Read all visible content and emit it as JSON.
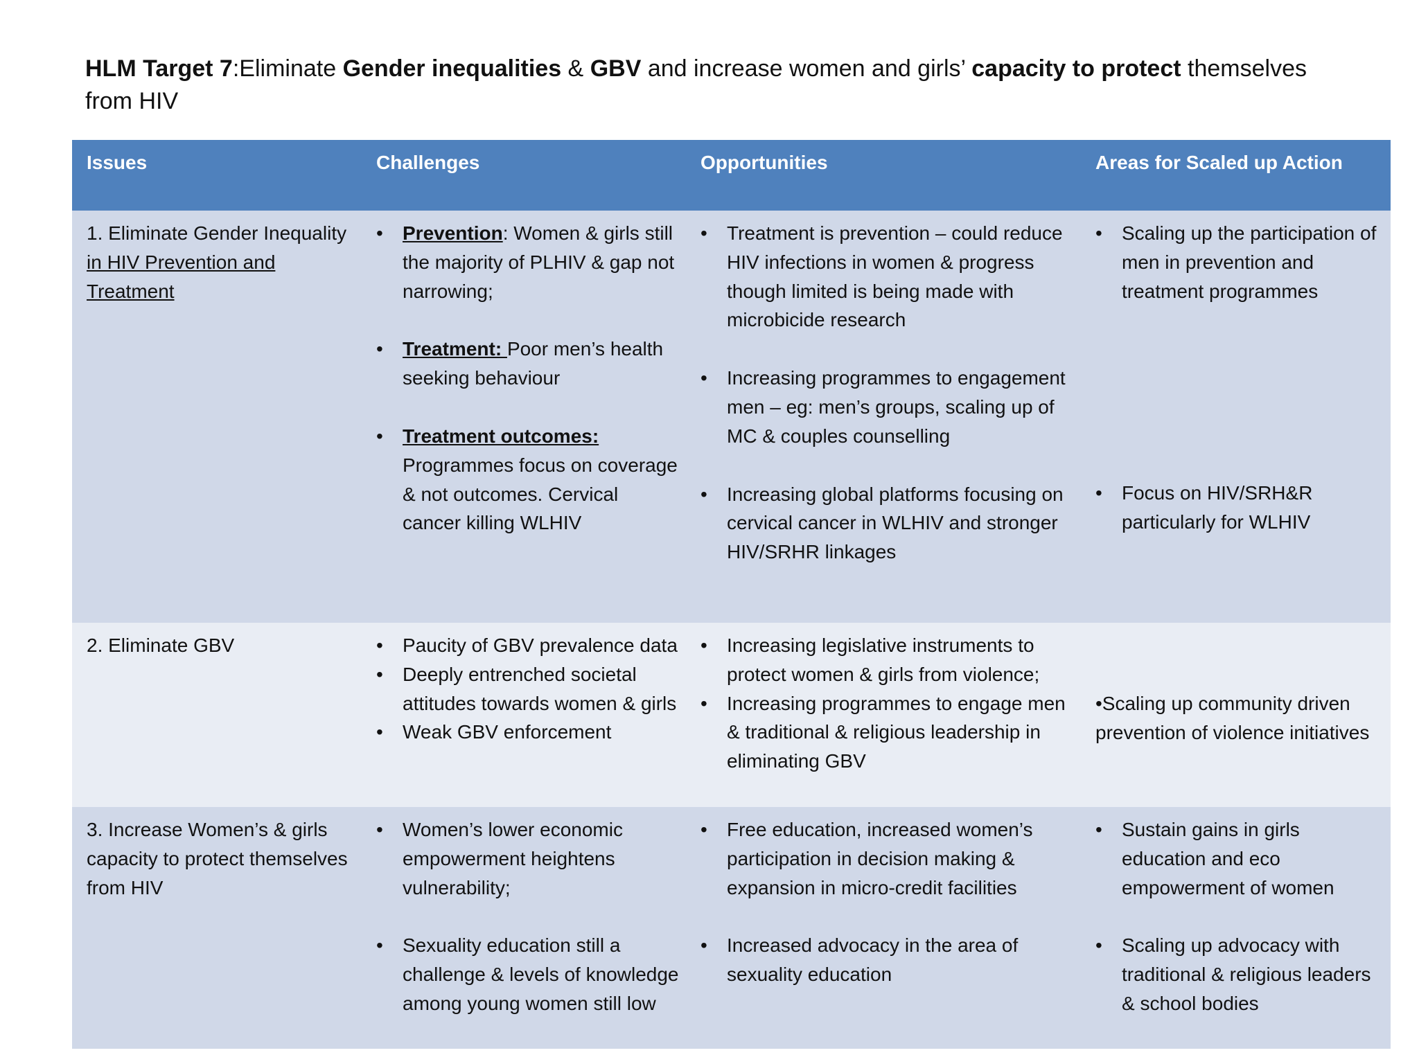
{
  "header": {
    "title": [
      {
        "text": "HLM Target 7",
        "bold": true
      },
      {
        "text": ":Eliminate "
      },
      {
        "text": "Gender inequalities",
        "bold": true
      },
      {
        "text": " & "
      },
      {
        "text": "GBV",
        "bold": true
      },
      {
        "text": " and increase women and girls’ "
      },
      {
        "text": "capacity to protect",
        "bold": true
      },
      {
        "text": " themselves from HIV"
      }
    ]
  },
  "table": {
    "columns": [
      "Issues",
      "Challenges",
      "Opportunities",
      "Areas for Scaled up Action"
    ],
    "rows": [
      {
        "issues": [
          [
            {
              "text": "1.  Eliminate Gender Inequality "
            },
            {
              "text": "in HIV Prevention and Treatment",
              "underline": true
            }
          ]
        ],
        "challenges": [
          [
            {
              "text": "Prevention",
              "bold": true,
              "underline": true
            },
            {
              "text": ":  Women & girls still the majority of PLHIV & gap not narrowing;"
            }
          ],
          [
            {
              "text": "Treatment: ",
              "bold": true,
              "underline": true
            },
            {
              "text": "Poor men’s health seeking behaviour"
            }
          ],
          [
            {
              "text": "Treatment outcomes: ",
              "bold": true,
              "underline": true
            },
            {
              "text": "Programmes focus on coverage & not outcomes. Cervical cancer killing WLHIV"
            }
          ]
        ],
        "opportunities": [
          [
            {
              "text": "Treatment is prevention – could reduce HIV infections in women & progress though limited is being made with microbicide research"
            }
          ],
          [
            {
              "text": "Increasing programmes to engagement men – eg: men’s groups, scaling up of MC & couples counselling"
            }
          ],
          [
            {
              "text": "Increasing global platforms focusing on cervical cancer in WLHIV and stronger HIV/SRHR linkages"
            }
          ]
        ],
        "actions": [
          [
            {
              "text": "Scaling up the participation of men in prevention and treatment programmes"
            }
          ],
          [
            {
              "text": "Focus on HIV/SRH&R particularly for WLHIV"
            }
          ]
        ]
      },
      {
        "issues": [
          [
            {
              "text": "2.  Eliminate GBV"
            }
          ]
        ],
        "challenges": [
          [
            {
              "text": "Paucity of GBV prevalence data"
            }
          ],
          [
            {
              "text": "Deeply entrenched societal attitudes towards women & girls"
            }
          ],
          [
            {
              "text": "Weak GBV enforcement"
            }
          ]
        ],
        "opportunities": [
          [
            {
              "text": "Increasing legislative instruments to protect women & girls from violence;"
            }
          ],
          [
            {
              "text": "Increasing programmes to engage men & traditional  & religious leadership in eliminating GBV"
            }
          ]
        ],
        "actions": [
          [
            {
              "text": "•Scaling up community driven prevention of violence initiatives"
            }
          ]
        ]
      },
      {
        "issues": [
          [
            {
              "text": "3.  Increase Women’s & girls capacity to protect themselves from HIV"
            }
          ]
        ],
        "challenges": [
          [
            {
              "text": "Women’s lower economic empowerment heightens vulnerability;"
            }
          ],
          [
            {
              "text": "Sexuality education still a challenge & levels of knowledge among young women still low"
            }
          ]
        ],
        "opportunities": [
          [
            {
              "text": "Free education, increased women’s participation in decision making & expansion in micro-credit facilities"
            }
          ],
          [
            {
              "text": "Increased advocacy in the area of sexuality education"
            }
          ]
        ],
        "actions": [
          [
            {
              "text": "Sustain gains in girls education and eco empowerment of women"
            }
          ],
          [
            {
              "text": "Scaling up advocacy with traditional & religious leaders & school bodies"
            }
          ]
        ]
      }
    ]
  }
}
